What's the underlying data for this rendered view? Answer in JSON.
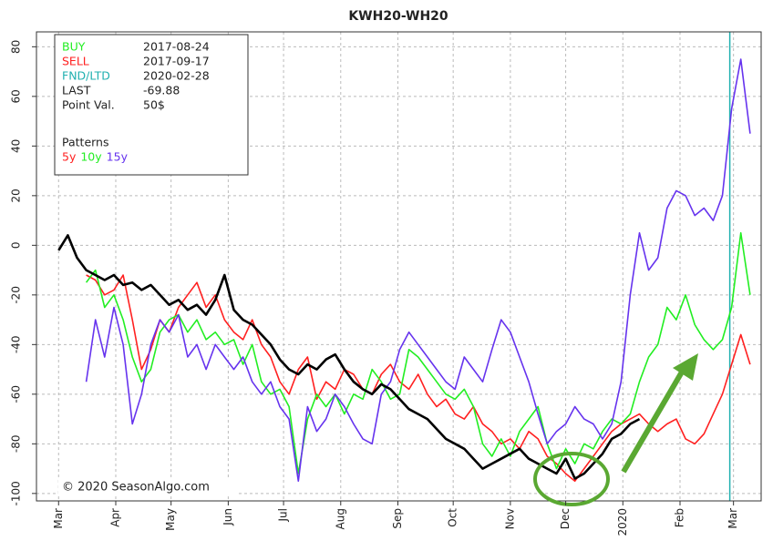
{
  "chart_data": {
    "type": "line",
    "title": "KWH20-WH20",
    "credit": "© 2020 SeasonAlgo.com",
    "info": [
      {
        "label": "BUY",
        "value": "2017-08-24"
      },
      {
        "label": "SELL",
        "value": "2017-09-17"
      },
      {
        "label": "FND/LTD",
        "value": "2020-02-28"
      },
      {
        "label": "LAST",
        "value": "-69.88"
      },
      {
        "label": "Point Val.",
        "value": "50$"
      }
    ],
    "patterns_label": "Patterns",
    "xlim": [
      -12,
      381
    ],
    "ylim": [
      -103,
      86
    ],
    "yticks": [
      -100,
      -80,
      -60,
      -40,
      -20,
      0,
      20,
      40,
      60,
      80
    ],
    "xticks": [
      {
        "value": 0,
        "label": "Mar"
      },
      {
        "value": 31,
        "label": "Apr"
      },
      {
        "value": 61,
        "label": "May"
      },
      {
        "value": 92,
        "label": "Jun"
      },
      {
        "value": 122,
        "label": "Jul"
      },
      {
        "value": 153,
        "label": "Aug"
      },
      {
        "value": 184,
        "label": "Sep"
      },
      {
        "value": 214,
        "label": "Oct"
      },
      {
        "value": 245,
        "label": "Nov"
      },
      {
        "value": 275,
        "label": "Dec"
      },
      {
        "value": 306,
        "label": "2020"
      },
      {
        "value": 337,
        "label": "Feb"
      },
      {
        "value": 366,
        "label": "Mar"
      }
    ],
    "fnd_line_x": 364,
    "grid": true,
    "x": [
      0,
      5,
      10,
      15,
      20,
      25,
      30,
      35,
      40,
      45,
      50,
      55,
      60,
      65,
      70,
      75,
      80,
      85,
      90,
      95,
      100,
      105,
      110,
      115,
      120,
      125,
      130,
      135,
      140,
      145,
      150,
      155,
      160,
      165,
      170,
      175,
      180,
      185,
      190,
      195,
      200,
      205,
      210,
      215,
      220,
      225,
      230,
      235,
      240,
      245,
      250,
      255,
      260,
      265,
      270,
      275,
      280,
      285,
      290,
      295,
      300,
      305,
      310,
      315,
      320,
      325,
      330,
      335,
      340,
      345,
      350,
      355,
      360,
      365,
      370,
      375
    ],
    "series": [
      {
        "name": "5y",
        "color": "#ff2020",
        "values": [
          null,
          null,
          null,
          -12,
          -14,
          -20,
          -18,
          -12,
          -30,
          -50,
          -42,
          -30,
          -35,
          -25,
          -20,
          -15,
          -25,
          -20,
          -30,
          -35,
          -38,
          -30,
          -40,
          -45,
          -55,
          -60,
          -50,
          -45,
          -62,
          -55,
          -58,
          -50,
          -52,
          -58,
          -60,
          -52,
          -48,
          -55,
          -58,
          -52,
          -60,
          -65,
          -62,
          -68,
          -70,
          -65,
          -72,
          -75,
          -80,
          -78,
          -82,
          -75,
          -78,
          -85,
          -88,
          -92,
          -95,
          -90,
          -85,
          -80,
          -75,
          -72,
          -70,
          -68,
          -72,
          -75,
          -72,
          -70,
          -78,
          -80,
          -76,
          -68,
          -60,
          -48,
          -36,
          -48
        ]
      },
      {
        "name": "10y",
        "color": "#22ee22",
        "values": [
          null,
          null,
          null,
          -15,
          -10,
          -25,
          -20,
          -30,
          -45,
          -55,
          -50,
          -35,
          -30,
          -28,
          -35,
          -30,
          -38,
          -35,
          -40,
          -38,
          -48,
          -40,
          -55,
          -60,
          -58,
          -65,
          -92,
          -70,
          -60,
          -65,
          -60,
          -68,
          -60,
          -62,
          -50,
          -55,
          -62,
          -60,
          -42,
          -45,
          -50,
          -55,
          -60,
          -62,
          -58,
          -65,
          -80,
          -85,
          -78,
          -85,
          -75,
          -70,
          -65,
          -80,
          -90,
          -82,
          -88,
          -80,
          -82,
          -75,
          -70,
          -72,
          -68,
          -55,
          -45,
          -40,
          -25,
          -30,
          -20,
          -32,
          -38,
          -42,
          -38,
          -25,
          5,
          -20
        ]
      },
      {
        "name": "15y",
        "color": "#6633ee",
        "values": [
          null,
          null,
          null,
          -55,
          -30,
          -45,
          -25,
          -40,
          -72,
          -60,
          -40,
          -30,
          -35,
          -28,
          -45,
          -40,
          -50,
          -40,
          -45,
          -50,
          -45,
          -55,
          -60,
          -55,
          -65,
          -70,
          -95,
          -65,
          -75,
          -70,
          -60,
          -65,
          -72,
          -78,
          -80,
          -60,
          -55,
          -42,
          -35,
          -40,
          -45,
          -50,
          -55,
          -58,
          -45,
          -50,
          -55,
          -42,
          -30,
          -35,
          -45,
          -55,
          -68,
          -80,
          -75,
          -72,
          -65,
          -70,
          -72,
          -78,
          -72,
          -55,
          -20,
          5,
          -10,
          -5,
          15,
          22,
          20,
          12,
          15,
          10,
          20,
          55,
          75,
          45
        ]
      },
      {
        "color": "#000000",
        "values": [
          -2,
          4,
          -5,
          -10,
          -12,
          -14,
          -12,
          -16,
          -15,
          -18,
          -16,
          -20,
          -24,
          -22,
          -26,
          -24,
          -28,
          -22,
          -12,
          -26,
          -30,
          -32,
          -36,
          -40,
          -46,
          -50,
          -52,
          -48,
          -50,
          -46,
          -44,
          -50,
          -55,
          -58,
          -60,
          -56,
          -58,
          -62,
          -66,
          -68,
          -70,
          -74,
          -78,
          -80,
          -82,
          -86,
          -90,
          -88,
          -86,
          -84,
          -82,
          -86,
          -88,
          -90,
          -92,
          -86,
          -94,
          -92,
          -88,
          -84,
          -78,
          -76,
          -72,
          -70,
          null,
          null,
          null,
          null,
          null,
          null,
          null,
          null,
          null,
          null,
          null,
          null
        ]
      }
    ]
  }
}
